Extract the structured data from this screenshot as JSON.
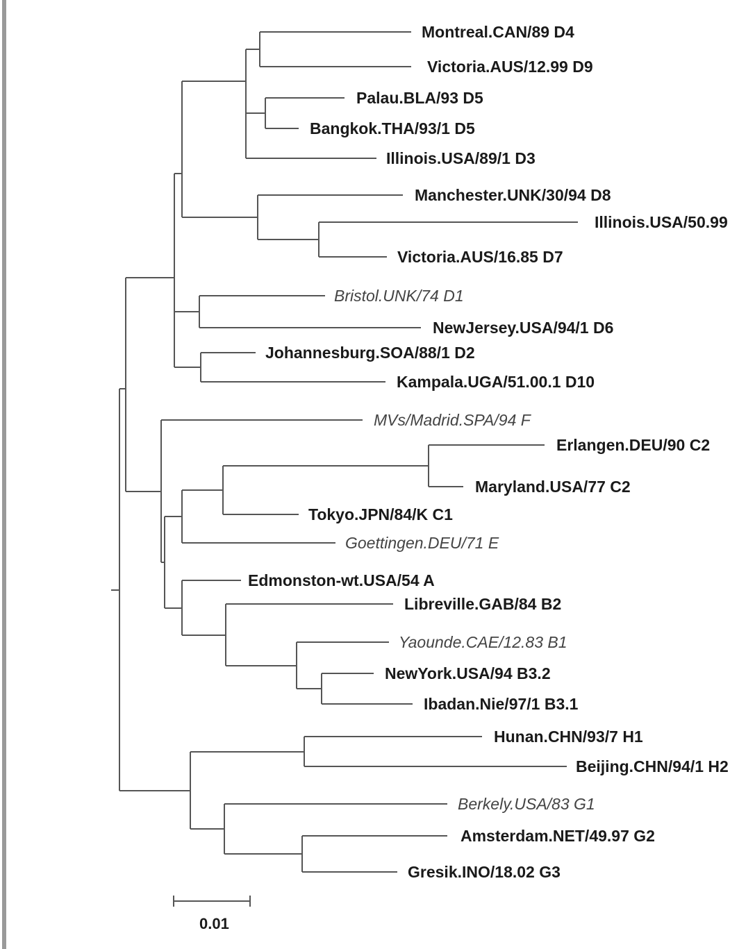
{
  "tree": {
    "taxa": [
      {
        "label": "Montreal.CAN/89 D4",
        "style": "bold"
      },
      {
        "label": "Victoria.AUS/12.99 D9",
        "style": "bold"
      },
      {
        "label": "Palau.BLA/93 D5",
        "style": "bold"
      },
      {
        "label": "Bangkok.THA/93/1 D5",
        "style": "bold"
      },
      {
        "label": "Illinois.USA/89/1 D3",
        "style": "bold"
      },
      {
        "label": "Manchester.UNK/30/94 D8",
        "style": "bold"
      },
      {
        "label": "Illinois.USA/50.99 D7",
        "style": "bold"
      },
      {
        "label": "Victoria.AUS/16.85 D7",
        "style": "bold"
      },
      {
        "label": "Bristol.UNK/74 D1",
        "style": "italic"
      },
      {
        "label": "NewJersey.USA/94/1 D6",
        "style": "bold"
      },
      {
        "label": "Johannesburg.SOA/88/1 D2",
        "style": "bold"
      },
      {
        "label": "Kampala.UGA/51.00.1 D10",
        "style": "bold"
      },
      {
        "label": "MVs/Madrid.SPA/94 F",
        "style": "italic"
      },
      {
        "label": "Erlangen.DEU/90 C2",
        "style": "bold"
      },
      {
        "label": "Maryland.USA/77 C2",
        "style": "bold"
      },
      {
        "label": "Tokyo.JPN/84/K C1",
        "style": "bold"
      },
      {
        "label": "Goettingen.DEU/71 E",
        "style": "italic"
      },
      {
        "label": "Edmonston-wt.USA/54 A",
        "style": "bold"
      },
      {
        "label": "Libreville.GAB/84 B2",
        "style": "bold"
      },
      {
        "label": "Yaounde.CAE/12.83 B1",
        "style": "italic"
      },
      {
        "label": "NewYork.USA/94 B3.2",
        "style": "bold"
      },
      {
        "label": "Ibadan.Nie/97/1 B3.1",
        "style": "bold"
      },
      {
        "label": "Hunan.CHN/93/7 H1",
        "style": "bold"
      },
      {
        "label": "Beijing.CHN/94/1 H2",
        "style": "bold"
      },
      {
        "label": "Berkely.USA/83 G1",
        "style": "italic"
      },
      {
        "label": "Amsterdam.NET/49.97 G2",
        "style": "bold"
      },
      {
        "label": "Gresik.INO/18.02 G3",
        "style": "bold"
      }
    ],
    "scale_bar": {
      "value": 0.01,
      "label": "0.01"
    }
  }
}
